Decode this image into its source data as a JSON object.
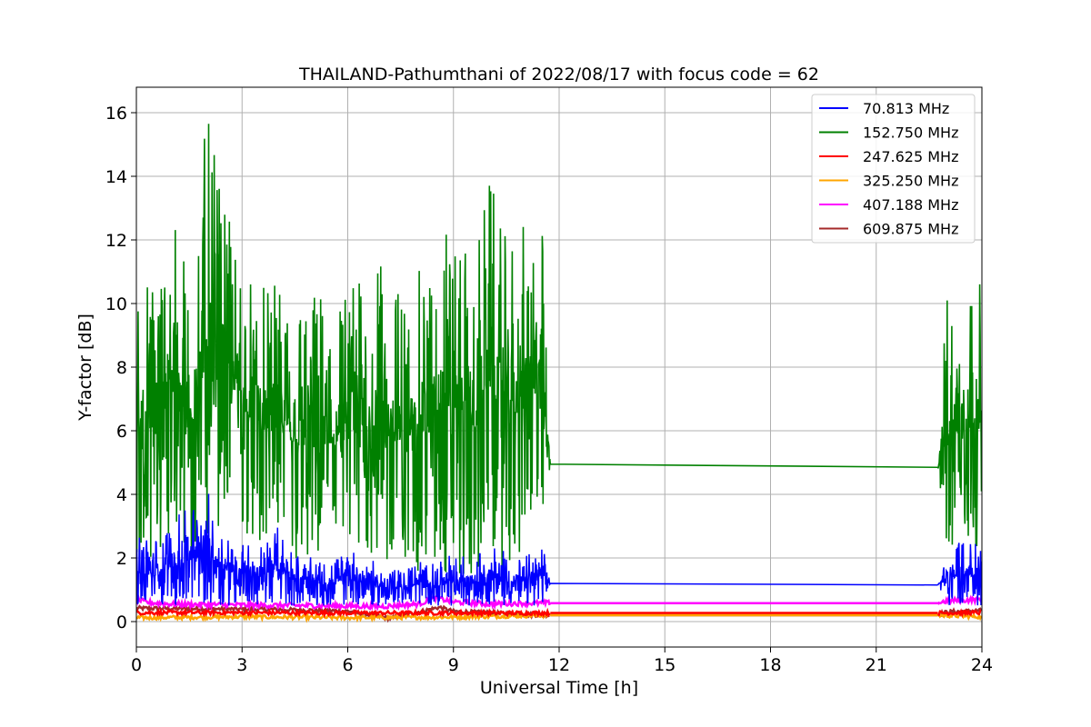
{
  "chart_data": {
    "type": "line",
    "title": "THAILAND-Pathumthani of 2022/08/17 with focus code = 62",
    "xlabel": "Universal Time [h]",
    "ylabel": "Y-factor [dB]",
    "xlim": [
      0,
      24
    ],
    "ylim": [
      -0.8,
      16.8
    ],
    "xticks": [
      "0",
      "3",
      "6",
      "9",
      "12",
      "15",
      "18",
      "21",
      "24"
    ],
    "yticks": [
      "0",
      "2",
      "4",
      "6",
      "8",
      "10",
      "12",
      "14",
      "16"
    ],
    "grid": true,
    "legend_position": "top-right",
    "data_gap": [
      11.75,
      22.75
    ],
    "series": [
      {
        "name": " 70.813 MHz",
        "color": "#0000ff",
        "x": [
          0,
          0.5,
          1,
          1.5,
          2,
          2.5,
          3,
          3.5,
          4,
          4.5,
          5,
          5.5,
          6,
          6.5,
          7,
          7.5,
          8,
          8.5,
          9,
          9.5,
          10,
          10.5,
          11,
          11.5,
          11.75,
          22.75,
          23,
          23.5,
          24
        ],
        "y_low": [
          0.5,
          0.5,
          0.5,
          0.5,
          0.5,
          0.5,
          0.5,
          0.5,
          0.5,
          0.5,
          0.5,
          0.5,
          0.5,
          0.5,
          0.5,
          0.5,
          0.5,
          0.5,
          0.5,
          0.5,
          0.5,
          0.5,
          0.5,
          0.5,
          1.2,
          1.15,
          0.5,
          0.5,
          0.5
        ],
        "y_high": [
          2.8,
          2.6,
          3.2,
          3.6,
          4.2,
          3.0,
          2.6,
          2.4,
          3.0,
          2.2,
          2.0,
          1.8,
          2.4,
          2.0,
          1.8,
          1.6,
          2.0,
          1.8,
          2.2,
          2.0,
          2.4,
          2.2,
          2.0,
          2.6,
          1.2,
          1.15,
          2.4,
          2.6,
          2.5
        ]
      },
      {
        "name": "152.750 MHz",
        "color": "#008000",
        "x": [
          0,
          0.5,
          1,
          1.5,
          2,
          2.5,
          3,
          3.5,
          4,
          4.5,
          5,
          5.5,
          6,
          6.5,
          7,
          7.5,
          8,
          8.5,
          9,
          9.5,
          10,
          10.5,
          11,
          11.5,
          11.75,
          22.75,
          23,
          23.5,
          24
        ],
        "y_low": [
          1.5,
          1.5,
          2.0,
          1.5,
          2.0,
          3.5,
          3.0,
          2.0,
          2.5,
          1.5,
          1.5,
          1.5,
          1.5,
          2.0,
          1.5,
          1.5,
          1.5,
          1.0,
          1.5,
          1.0,
          2.0,
          1.5,
          2.0,
          2.5,
          4.95,
          4.85,
          1.5,
          2.0,
          2.5
        ],
        "y_high": [
          11.3,
          11.0,
          13.6,
          11.0,
          16.0,
          13.0,
          11.5,
          10.6,
          10.6,
          10.4,
          10.5,
          10.6,
          10.8,
          11.0,
          11.3,
          10.5,
          11.0,
          12.2,
          13.0,
          11.0,
          14.1,
          12.0,
          12.5,
          13.1,
          4.95,
          4.85,
          10.8,
          10.9,
          10.7
        ]
      },
      {
        "name": "247.625 MHz",
        "color": "#ff0000",
        "x": [
          0,
          3,
          6,
          9,
          11.75,
          22.75,
          24
        ],
        "y": [
          0.28,
          0.28,
          0.27,
          0.27,
          0.27,
          0.27,
          0.28
        ]
      },
      {
        "name": "325.250 MHz",
        "color": "#ffa500",
        "x": [
          0,
          3,
          6,
          9,
          11.75,
          22.75,
          24
        ],
        "y": [
          0.12,
          0.15,
          0.12,
          0.14,
          0.2,
          0.2,
          0.15
        ]
      },
      {
        "name": "407.188 MHz",
        "color": "#ff00ff",
        "x": [
          0,
          0.3,
          1,
          3,
          5,
          7,
          8,
          8.5,
          9,
          10,
          11,
          11.75,
          22.75,
          23,
          24
        ],
        "y": [
          0.7,
          0.6,
          0.55,
          0.52,
          0.5,
          0.48,
          0.55,
          0.75,
          0.62,
          0.55,
          0.58,
          0.58,
          0.58,
          0.65,
          0.7
        ]
      },
      {
        "name": "609.875 MHz",
        "color": "#a52a2a",
        "x": [
          0,
          2,
          4,
          6,
          7.2,
          7.6,
          8,
          8.6,
          9,
          10,
          11,
          11.75,
          22.75,
          23,
          24
        ],
        "y": [
          0.42,
          0.4,
          0.38,
          0.33,
          0.1,
          0.2,
          0.3,
          0.45,
          0.32,
          0.28,
          0.22,
          0.2,
          0.2,
          0.3,
          0.35
        ]
      }
    ]
  }
}
